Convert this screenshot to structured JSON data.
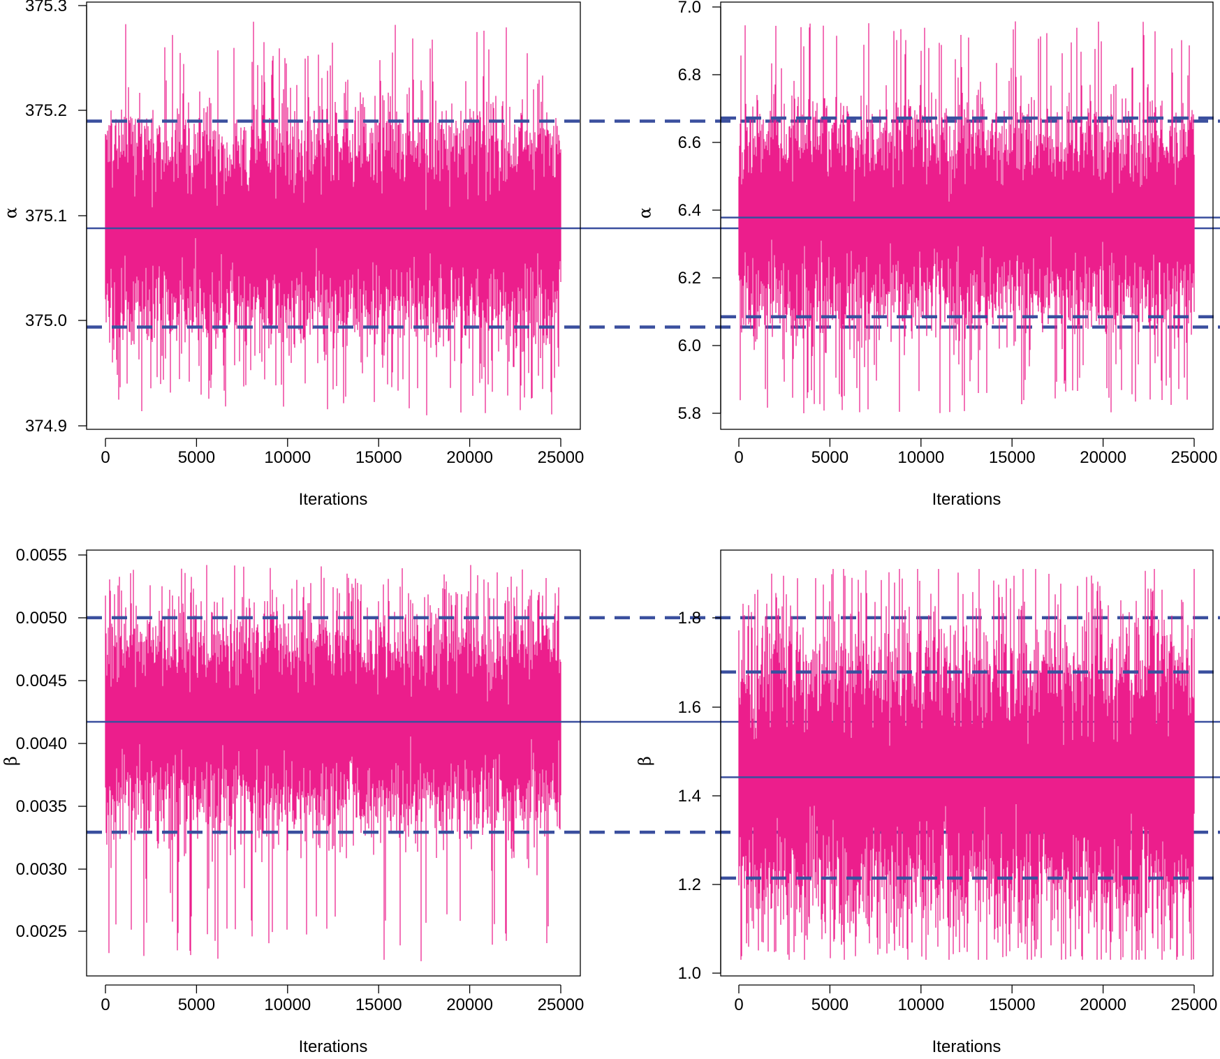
{
  "colors": {
    "trace": "#ec1e8c",
    "summary": "#3a4f9e",
    "axis": "#000000"
  },
  "chart_data": [
    {
      "type": "line",
      "title": "",
      "xlabel": "Iterations",
      "ylabel": "α",
      "xlim": [
        0,
        25000
      ],
      "ylim": [
        374.9,
        375.3
      ],
      "xticks": [
        "0",
        "5000",
        "10000",
        "15000",
        "20000",
        "25000"
      ],
      "yticks": [
        "374.9",
        "375.0",
        "375.1",
        "375.2",
        "375.3"
      ],
      "trace": {
        "n_iterations": 25000,
        "center": 375.088,
        "core_low": 375.03,
        "core_high": 375.155,
        "spike_min": 374.91,
        "spike_max": 375.285
      },
      "mean": 375.088,
      "lower_bound": 374.994,
      "upper_bound": 375.19,
      "grid": false
    },
    {
      "type": "line",
      "title": "",
      "xlabel": "Iterations",
      "ylabel": "α",
      "xlim": [
        0,
        25000
      ],
      "ylim": [
        5.8,
        7.0
      ],
      "xticks": [
        "0",
        "5000",
        "10000",
        "15000",
        "20000",
        "25000"
      ],
      "yticks": [
        "5.8",
        "6.0",
        "6.2",
        "6.4",
        "6.6",
        "6.8",
        "7.0"
      ],
      "trace": {
        "n_iterations": 25000,
        "center": 6.378,
        "core_low": 6.2,
        "core_high": 6.57,
        "spike_min": 5.8,
        "spike_max": 6.96
      },
      "mean": 6.378,
      "lower_bound": 6.085,
      "upper_bound": 6.672,
      "grid": false
    },
    {
      "type": "line",
      "title": "",
      "xlabel": "Iterations",
      "ylabel": "β",
      "xlim": [
        0,
        25000
      ],
      "ylim": [
        0.0025,
        0.0055
      ],
      "xticks": [
        "0",
        "5000",
        "10000",
        "15000",
        "20000",
        "25000"
      ],
      "yticks": [
        "0.0025",
        "0.0030",
        "0.0035",
        "0.0040",
        "0.0045",
        "0.0050",
        "0.0055"
      ],
      "trace": {
        "n_iterations": 25000,
        "center": 0.00417,
        "core_low": 0.0036,
        "core_high": 0.0046,
        "spike_min": 0.00226,
        "spike_max": 0.00542
      },
      "mean": 0.00417,
      "lower_bound": 0.00329,
      "upper_bound": 0.005,
      "grid": false
    },
    {
      "type": "line",
      "title": "",
      "xlabel": "Iterations",
      "ylabel": "β",
      "xlim": [
        0,
        25000
      ],
      "ylim": [
        1.0,
        1.9
      ],
      "xticks": [
        "0",
        "5000",
        "10000",
        "15000",
        "20000",
        "25000"
      ],
      "yticks": [
        "1.0",
        "1.2",
        "1.4",
        "1.6",
        "1.8"
      ],
      "trace": {
        "n_iterations": 25000,
        "center": 1.441,
        "core_low": 1.25,
        "core_high": 1.64,
        "spike_min": 1.03,
        "spike_max": 1.91
      },
      "mean": 1.441,
      "lower_bound": 1.214,
      "upper_bound": 1.678,
      "grid": false
    }
  ]
}
